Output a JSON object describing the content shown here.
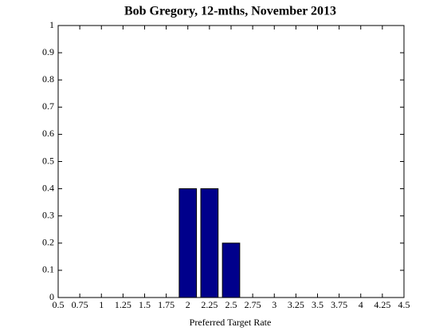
{
  "chart_data": {
    "type": "bar",
    "title": "Bob Gregory, 12-mths, November 2013",
    "x_label": "Preferred Target Rate",
    "x": [
      2,
      2.25,
      2.5
    ],
    "values": [
      0.4,
      0.4,
      0.2
    ],
    "color": "#00008b",
    "xlim": [
      0.5,
      4.5
    ],
    "xticks": [
      0.5,
      0.75,
      1,
      1.25,
      1.5,
      1.75,
      2,
      2.25,
      2.5,
      2.75,
      3,
      3.25,
      3.5,
      3.75,
      4,
      4.25,
      4.5
    ],
    "ylim": [
      0,
      1
    ],
    "yticks": [
      0,
      0.1,
      0.2,
      0.3,
      0.4,
      0.5,
      0.6,
      0.7,
      0.8,
      0.9,
      1
    ]
  }
}
